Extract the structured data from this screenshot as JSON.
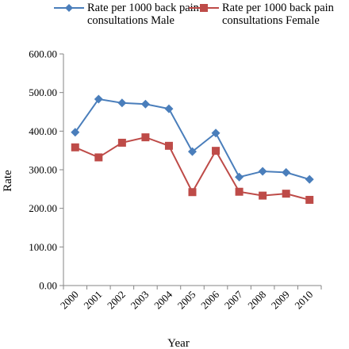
{
  "chart_data": {
    "type": "line",
    "categories": [
      "2000",
      "2001",
      "2002",
      "2003",
      "2004",
      "2005",
      "2006",
      "2007",
      "2008",
      "2009",
      "2010"
    ],
    "series": [
      {
        "name": "Rate per 1000 back pain consultations Male",
        "color": "#4a7ebb",
        "marker": "diamond",
        "values": [
          397,
          483,
          473,
          470,
          458,
          347,
          395,
          281,
          296,
          293,
          275
        ]
      },
      {
        "name": "Rate per 1000 back pain consultations Female",
        "color": "#be4b48",
        "marker": "square",
        "values": [
          358,
          332,
          370,
          384,
          362,
          242,
          349,
          243,
          233,
          238,
          222
        ]
      }
    ],
    "ylim": [
      0,
      600
    ],
    "yticks": [
      "0.00",
      "100.00",
      "200.00",
      "300.00",
      "400.00",
      "500.00",
      "600.00"
    ],
    "ylabel": "Rate",
    "xlabel": "Year",
    "grid": false,
    "legend_position": "top"
  }
}
